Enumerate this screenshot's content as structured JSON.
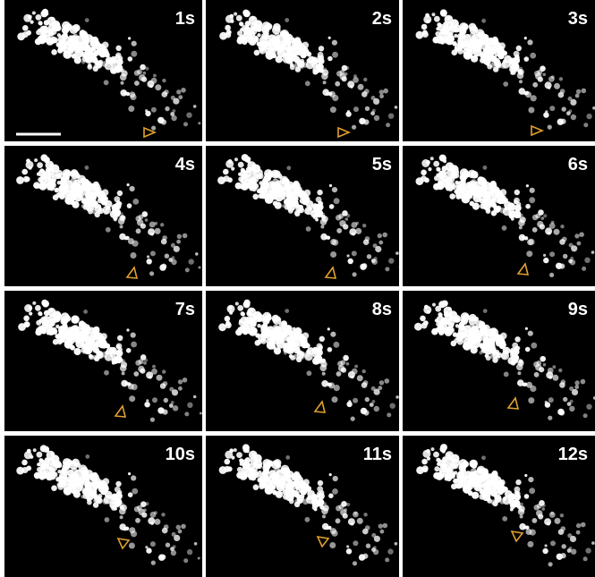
{
  "panels": [
    {
      "label": "1s"
    },
    {
      "label": "2s"
    },
    {
      "label": "3s"
    },
    {
      "label": "4s"
    },
    {
      "label": "5s"
    },
    {
      "label": "6s"
    },
    {
      "label": "7s"
    },
    {
      "label": "8s"
    },
    {
      "label": "9s"
    },
    {
      "label": "10s"
    },
    {
      "label": "11s"
    },
    {
      "label": "12s"
    }
  ]
}
